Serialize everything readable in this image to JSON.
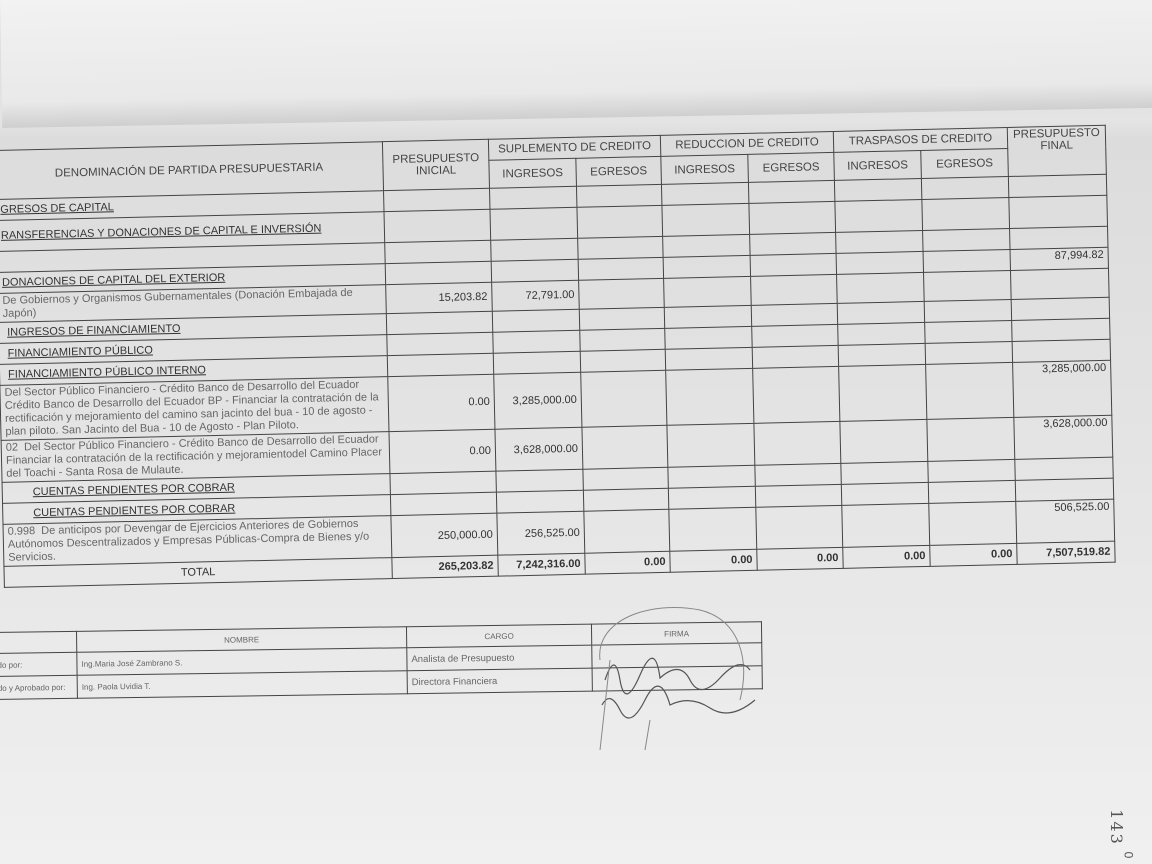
{
  "headers": {
    "denominacion": "DENOMINACIÓN DE PARTIDA PRESUPUESTARIA",
    "inicial": "PRESUPUESTO INICIAL",
    "suplemento": "SUPLEMENTO DE CREDITO",
    "reduccion": "REDUCCION DE CREDITO",
    "traspasos": "TRASPASOS DE CREDITO",
    "final": "PRESUPUESTO FINAL",
    "ingresos": "INGRESOS",
    "egresos": "EGRESOS"
  },
  "rows": [
    {
      "code": "",
      "label": "GRESOS DE CAPITAL",
      "inicial": "",
      "sup_ing": "",
      "final": ""
    },
    {
      "code": "",
      "label": "RANSFERENCIAS Y DONACIONES  DE CAPITAL E INVERSIÓN",
      "inicial": "",
      "sup_ing": "",
      "final": ""
    },
    {
      "code": "",
      "label": "",
      "inicial": "",
      "sup_ing": "",
      "final": ""
    },
    {
      "code": "",
      "label": "DONACIONES DE CAPITAL DEL EXTERIOR",
      "inicial": "",
      "sup_ing": "",
      "final": "87,994.82"
    },
    {
      "code": "",
      "label": "De Gobiernos y Organismos Gubernamentales (Donación Embajada de Japón)",
      "inicial": "15,203.82",
      "sup_ing": "72,791.00",
      "final": ""
    },
    {
      "code": "",
      "label": "INGRESOS DE FINANCIAMIENTO",
      "inicial": "",
      "sup_ing": "",
      "final": ""
    },
    {
      "code": "",
      "label": "FINANCIAMIENTO PÚBLICO",
      "inicial": "",
      "sup_ing": "",
      "final": ""
    },
    {
      "code": "",
      "label": "FINANCIAMIENTO PÚBLICO INTERNO",
      "inicial": "",
      "sup_ing": "",
      "final": ""
    },
    {
      "code": "",
      "label": "Del Sector Público Financiero - Crédito Banco de Desarrollo del Ecuador Crédito Banco de Desarrollo del Ecuador BP -  Financiar la contratación de la rectificación y mejoramiento del camino san jacinto del bua - 10 de agosto - plan piloto. San Jacinto del Bua - 10 de Agosto - Plan Piloto.",
      "inicial": "0.00",
      "sup_ing": "3,285,000.00",
      "final": "3,285,000.00"
    },
    {
      "code": "02",
      "label": "Del Sector Público Financiero - Crédito Banco de Desarrollo del Ecuador Financiar la contratación de la rectificación y mejoramientodel Camino Placer del Toachi - Santa Rosa de Mulaute.",
      "inicial": "0.00",
      "sup_ing": "3,628,000.00",
      "final": "3,628,000.00"
    },
    {
      "code": "",
      "label": "CUENTAS PENDIENTES POR COBRAR",
      "inicial": "",
      "sup_ing": "",
      "final": ""
    },
    {
      "code": "",
      "label": "CUENTAS PENDIENTES POR COBRAR",
      "inicial": "",
      "sup_ing": "",
      "final": ""
    },
    {
      "code": "0.998",
      "label": "De anticipos por Devengar de Ejercicios Anteriores de Gobiernos Autónomos Descentralizados  y Empresas Públicas-Compra de Bienes y/o Servicios.",
      "inicial": "250,000.00",
      "sup_ing": "256,525.00",
      "final": "506,525.00"
    }
  ],
  "total": {
    "label": "TOTAL",
    "inicial": "265,203.82",
    "sup_ing": "7,242,316.00",
    "sup_eg": "0.00",
    "red_ing": "0.00",
    "red_eg": "0.00",
    "tra_ing": "0.00",
    "tra_eg": "0.00",
    "final": "7,507,519.82"
  },
  "signatures": {
    "headers": {
      "nombre": "NOMBRE",
      "cargo": "CARGO",
      "firma": "FIRMA"
    },
    "rows": [
      {
        "role": "do por:",
        "nombre": "Ing.Maria José Zambrano S.",
        "cargo": "Analista de Presupuesto"
      },
      {
        "role": "do y Aprobado por:",
        "nombre": "Ing. Paola Uvidia T.",
        "cargo": "Directora Financiera"
      }
    ]
  },
  "page_number": "143",
  "page_mark": "0"
}
